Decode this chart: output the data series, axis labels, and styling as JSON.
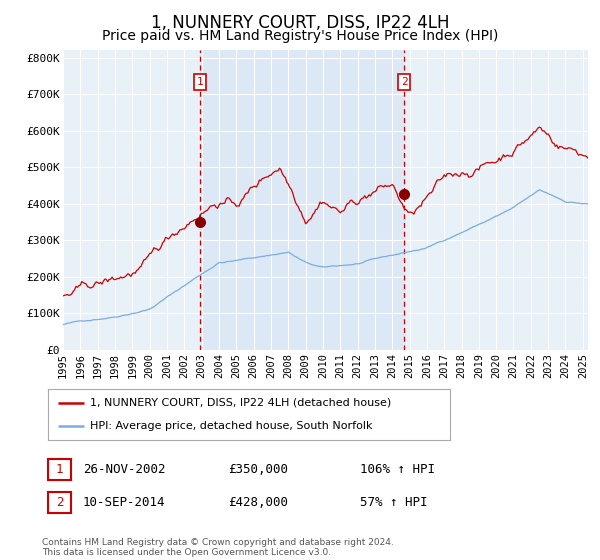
{
  "title": "1, NUNNERY COURT, DISS, IP22 4LH",
  "subtitle": "Price paid vs. HM Land Registry's House Price Index (HPI)",
  "title_fontsize": 12,
  "subtitle_fontsize": 10,
  "ylim": [
    0,
    820000
  ],
  "xlim_start": 1995.0,
  "xlim_end": 2025.3,
  "yticks": [
    0,
    100000,
    200000,
    300000,
    400000,
    500000,
    600000,
    700000,
    800000
  ],
  "ytick_labels": [
    "£0",
    "£100K",
    "£200K",
    "£300K",
    "£400K",
    "£500K",
    "£600K",
    "£700K",
    "£800K"
  ],
  "background_color": "#ffffff",
  "plot_bg_color": "#e8f0f8",
  "grid_color": "#ffffff",
  "red_line_color": "#cc0000",
  "blue_line_color": "#7aade0",
  "vline_color": "#cc0000",
  "marker_color": "#880000",
  "annotation_box_color": "#cc0000",
  "legend_line1": "1, NUNNERY COURT, DISS, IP22 4LH (detached house)",
  "legend_line2": "HPI: Average price, detached house, South Norfolk",
  "sale1_label": "1",
  "sale1_date": "26-NOV-2002",
  "sale1_price": "£350,000",
  "sale1_hpi": "106% ↑ HPI",
  "sale1_x": 2002.9,
  "sale1_y": 350000,
  "sale2_label": "2",
  "sale2_date": "10-SEP-2014",
  "sale2_price": "£428,000",
  "sale2_hpi": "57% ↑ HPI",
  "sale2_x": 2014.7,
  "sale2_y": 428000,
  "footnote": "Contains HM Land Registry data © Crown copyright and database right 2024.\nThis data is licensed under the Open Government Licence v3.0.",
  "xticks": [
    1995,
    1996,
    1997,
    1998,
    1999,
    2000,
    2001,
    2002,
    2003,
    2004,
    2005,
    2006,
    2007,
    2008,
    2009,
    2010,
    2011,
    2012,
    2013,
    2014,
    2015,
    2016,
    2017,
    2018,
    2019,
    2020,
    2021,
    2022,
    2023,
    2024,
    2025
  ]
}
